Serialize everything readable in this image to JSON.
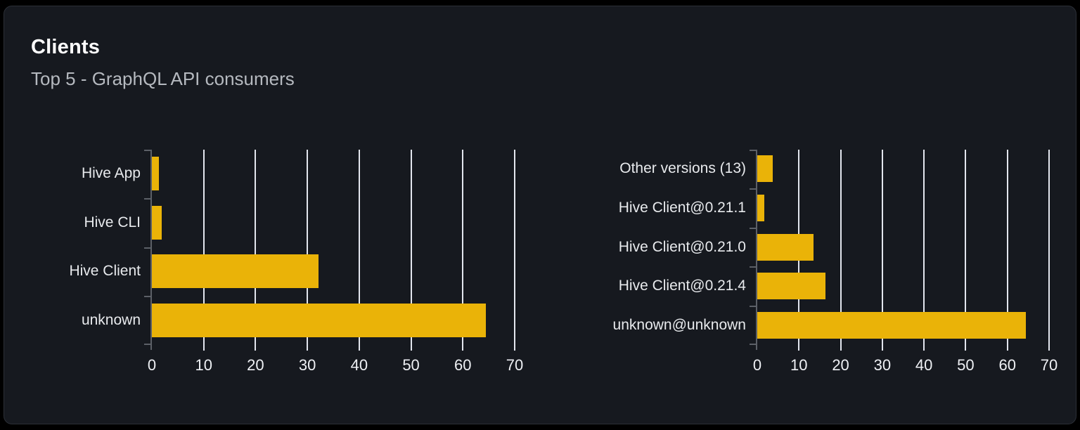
{
  "panel": {
    "title": "Clients",
    "subtitle": "Top 5 - GraphQL API consumers"
  },
  "colors": {
    "page_background": "#000000",
    "card_background": "#16191f",
    "card_border": "#2b2f36",
    "bar": "#eab308",
    "gridline": "#e3e6ee",
    "axis": "#5c6067",
    "title_text": "#ffffff",
    "subtitle_text": "#b5b9bf",
    "category_label_text": "#e8eaed",
    "tick_label_text": "#eef0f4"
  },
  "chart_data": [
    {
      "type": "bar",
      "orientation": "horizontal",
      "name": "clients-by-name",
      "categories": [
        "Hive App",
        "Hive CLI",
        "Hive Client",
        "unknown"
      ],
      "values": [
        1.3,
        1.9,
        32.1,
        64.4
      ],
      "xlim": [
        0,
        70
      ],
      "x_ticks": [
        0,
        10,
        20,
        30,
        40,
        50,
        60,
        70
      ],
      "grid": "vertical",
      "legend": "none"
    },
    {
      "type": "bar",
      "orientation": "horizontal",
      "name": "clients-by-version",
      "categories": [
        "Other versions (13)",
        "Hive Client@0.21.1",
        "Hive Client@0.21.0",
        "Hive Client@0.21.4",
        "unknown@unknown"
      ],
      "values": [
        3.7,
        1.7,
        13.5,
        16.3,
        64.4
      ],
      "xlim": [
        0,
        70
      ],
      "x_ticks": [
        0,
        10,
        20,
        30,
        40,
        50,
        60,
        70
      ],
      "grid": "vertical",
      "legend": "none"
    }
  ]
}
